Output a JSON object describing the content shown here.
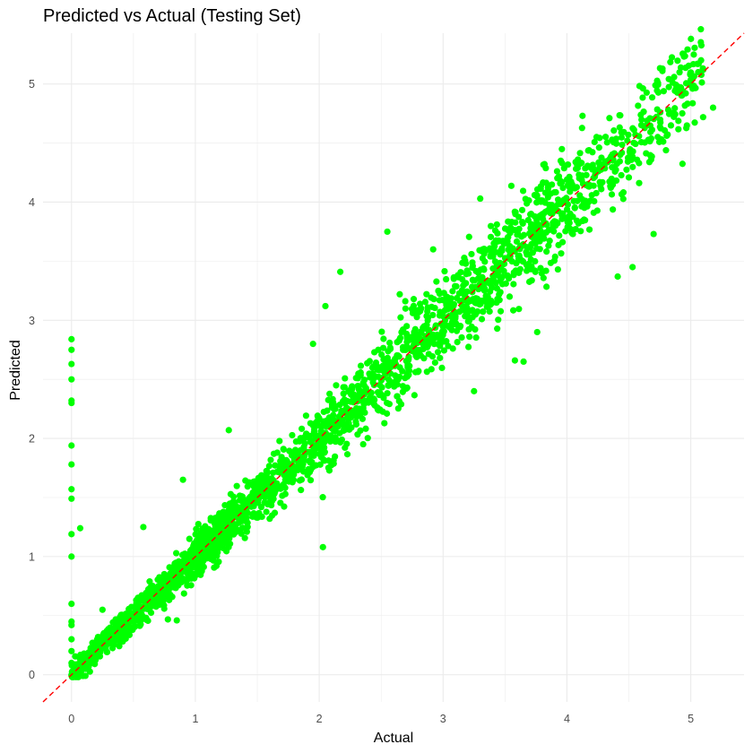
{
  "chart_data": {
    "type": "scatter",
    "title": "Predicted vs Actual (Testing Set)",
    "xlabel": "Actual",
    "ylabel": "Predicted",
    "xlim": [
      -0.23,
      5.43
    ],
    "ylim": [
      -0.23,
      5.43
    ],
    "x_ticks": [
      0,
      1,
      2,
      3,
      4,
      5
    ],
    "y_ticks": [
      0,
      1,
      2,
      3,
      4,
      5
    ],
    "x_tick_labels": [
      "0",
      "1",
      "2",
      "3",
      "4",
      "5"
    ],
    "y_tick_labels": [
      "0",
      "1",
      "2",
      "3",
      "4",
      "5"
    ],
    "grid": true,
    "point_color": "#00ff00",
    "reference_line": {
      "type": "identity",
      "color": "#ff0000",
      "style": "dashed"
    },
    "series": [
      {
        "values_note": "Representative points; the bulk of the cloud follows the y = x line.",
        "points": [
          [
            0,
            2.84
          ],
          [
            0,
            2.75
          ],
          [
            0,
            2.63
          ],
          [
            0,
            2.5
          ],
          [
            0,
            2.32
          ],
          [
            0,
            2.3
          ],
          [
            0,
            1.94
          ],
          [
            0,
            1.78
          ],
          [
            0,
            1.57
          ],
          [
            0,
            1.49
          ],
          [
            0,
            1.19
          ],
          [
            0,
            1.0
          ],
          [
            0,
            0.6
          ],
          [
            0,
            0.45
          ],
          [
            0,
            0.42
          ],
          [
            0,
            0.3
          ],
          [
            0,
            0.2
          ],
          [
            0,
            0.1
          ],
          [
            0.07,
            1.24
          ],
          [
            0.25,
            0.55
          ],
          [
            0.58,
            1.25
          ],
          [
            0.9,
            1.65
          ],
          [
            1.27,
            2.07
          ],
          [
            2.03,
            1.08
          ],
          [
            2.55,
            3.75
          ],
          [
            2.05,
            3.12
          ],
          [
            2.17,
            3.41
          ],
          [
            2.92,
            3.6
          ],
          [
            3.3,
            4.03
          ],
          [
            3.58,
            2.66
          ],
          [
            3.76,
            2.9
          ],
          [
            4.7,
            3.73
          ],
          [
            4.53,
            3.45
          ],
          [
            4.41,
            3.37
          ],
          [
            5.18,
            4.8
          ],
          [
            4.92,
            4.97
          ],
          [
            5.06,
            5.1
          ],
          [
            5.1,
            5.12
          ],
          [
            3.25,
            2.4
          ],
          [
            3.65,
            2.65
          ],
          [
            1.6,
            1.32
          ],
          [
            0.85,
            0.46
          ],
          [
            1.95,
            2.8
          ],
          [
            2.65,
            3.22
          ],
          [
            3.95,
            4.35
          ]
        ]
      }
    ]
  }
}
